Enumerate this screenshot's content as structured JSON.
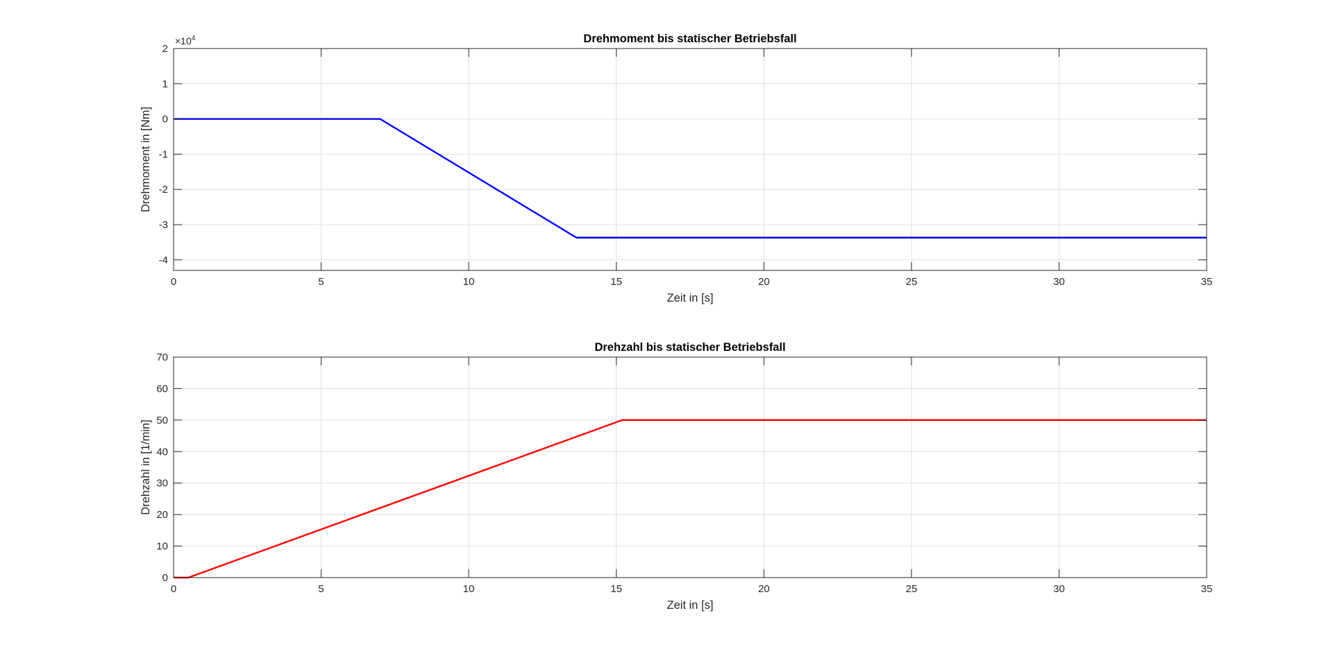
{
  "chart_data": [
    {
      "type": "line",
      "title": "Drehmoment bis statischer Betriebsfall",
      "xlabel": "Zeit in [s]",
      "ylabel": "Drehmoment in [Nm]",
      "xlim": [
        0,
        35
      ],
      "ylim": [
        -4.3,
        2
      ],
      "xticks": [
        0,
        5,
        10,
        15,
        20,
        25,
        30,
        35
      ],
      "xtick_labels": [
        "0",
        "5",
        "10",
        "15",
        "20",
        "25",
        "30",
        "35"
      ],
      "yticks": [
        -4,
        -3,
        -2,
        -1,
        0,
        1,
        2
      ],
      "ytick_labels": [
        "-4",
        "-3",
        "-2",
        "-1",
        "0",
        "1",
        "2"
      ],
      "y_exponent": {
        "base": "×10",
        "power": "4"
      },
      "grid": true,
      "series": [
        {
          "color": "#0000ff",
          "x": [
            0,
            7,
            13.65,
            35
          ],
          "y": [
            0,
            0,
            -3.37,
            -3.37
          ]
        }
      ]
    },
    {
      "type": "line",
      "title": "Drehzahl bis statischer Betriebsfall",
      "xlabel": "Zeit in [s]",
      "ylabel": "Drehzahl in [1/min]",
      "xlim": [
        0,
        35
      ],
      "ylim": [
        0,
        70
      ],
      "xticks": [
        0,
        5,
        10,
        15,
        20,
        25,
        30,
        35
      ],
      "xtick_labels": [
        "0",
        "5",
        "10",
        "15",
        "20",
        "25",
        "30",
        "35"
      ],
      "yticks": [
        0,
        10,
        20,
        30,
        40,
        50,
        60,
        70
      ],
      "ytick_labels": [
        "0",
        "10",
        "20",
        "30",
        "40",
        "50",
        "60",
        "70"
      ],
      "grid": true,
      "series": [
        {
          "color": "#ff0000",
          "x": [
            0,
            0.5,
            15.2,
            35
          ],
          "y": [
            0,
            0,
            50,
            50
          ]
        }
      ]
    }
  ]
}
